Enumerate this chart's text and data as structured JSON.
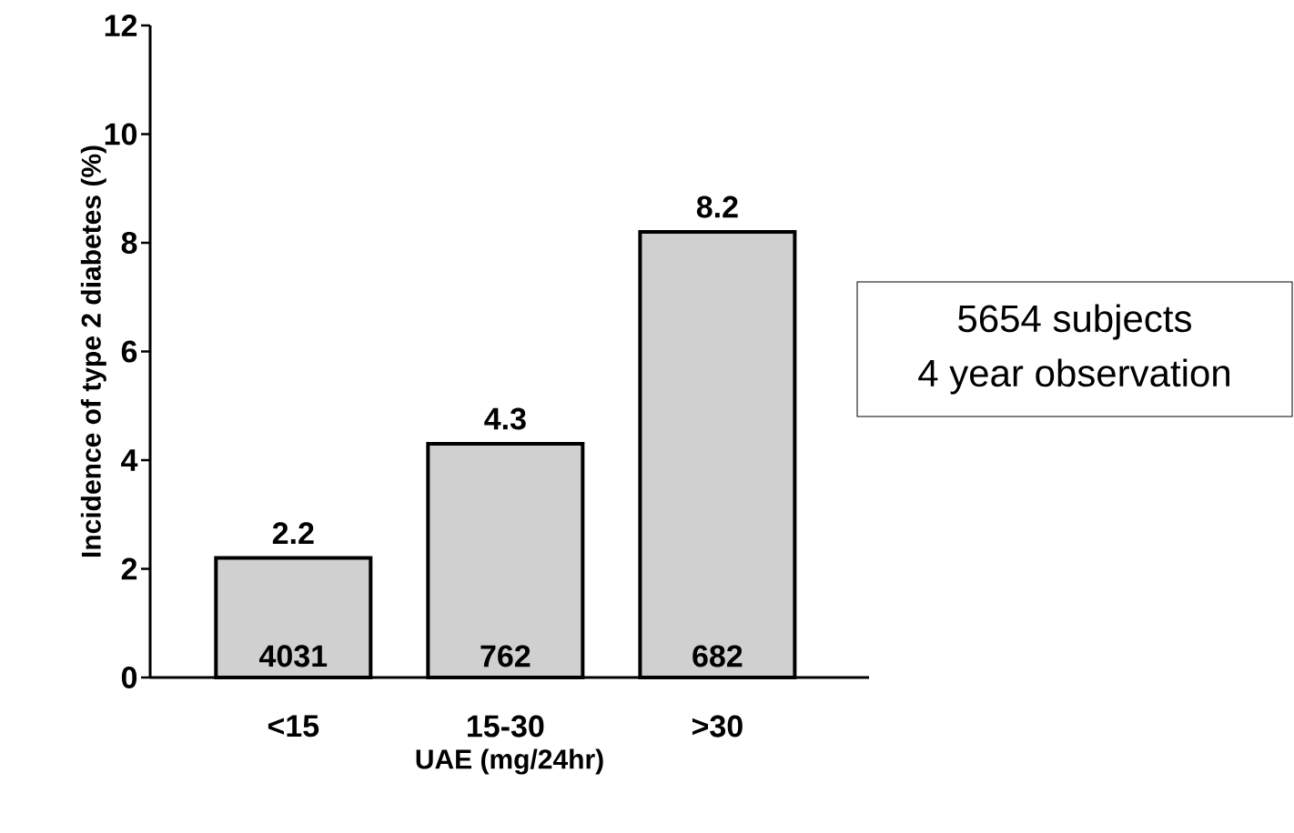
{
  "chart_data": {
    "type": "bar",
    "xlabel": "UAE (mg/24hr)",
    "ylabel": "Incidence of type 2 diabetes (%)",
    "categories": [
      "<15",
      "15-30",
      ">30"
    ],
    "values": [
      2.2,
      4.3,
      8.2
    ],
    "color": "#d0d0d0",
    "data_labels": true,
    "ylim": [
      0,
      12
    ],
    "yticks": [
      0,
      2,
      4,
      6,
      8,
      10,
      12
    ],
    "grid": false,
    "annotations": [
      "4031",
      "762",
      "682",
      "5654 subjects",
      "4 year observation"
    ]
  }
}
